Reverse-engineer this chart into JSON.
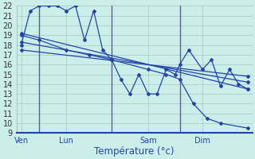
{
  "background_color": "#cceee8",
  "grid_color": "#aacccc",
  "line_color": "#2244aa",
  "ylim": [
    9,
    22
  ],
  "yticks": [
    9,
    10,
    11,
    12,
    13,
    14,
    15,
    16,
    17,
    18,
    19,
    20,
    21,
    22
  ],
  "xlabel": "Température (°c)",
  "xlabel_fontsize": 8.5,
  "tick_fontsize": 7,
  "day_labels": [
    "Ven",
    "Lun",
    "Sam",
    "Dim"
  ],
  "day_positions": [
    0.5,
    5.5,
    14.5,
    20.5
  ],
  "vline_positions": [
    2.5,
    10.5,
    18.0
  ],
  "xlim": [
    0,
    26
  ],
  "num_x_gridlines": 26,
  "series1_x": [
    0.5,
    1.5,
    2.5,
    3.5,
    4.5,
    5.5,
    6.5,
    7.5,
    8.5,
    9.5,
    10.5,
    11.5,
    12.5,
    13.5,
    14.5,
    15.5,
    16.5,
    17.5,
    18.0,
    19.0,
    20.5,
    21.5,
    22.5,
    23.5,
    24.5,
    25.5
  ],
  "series1_y": [
    18,
    21.5,
    22,
    22,
    22,
    21.5,
    22,
    18.5,
    21.5,
    17.5,
    16.5,
    14.5,
    13,
    15,
    13,
    13,
    15.5,
    15,
    16,
    17.5,
    15.5,
    16.5,
    13.8,
    15.5,
    14,
    13.5
  ],
  "series2_x": [
    0.5,
    2.5,
    5.5,
    8.0,
    10.5,
    14.5,
    16.5,
    18.0,
    19.5,
    21.0,
    22.5,
    25.5
  ],
  "series2_y": [
    19,
    18.5,
    17.5,
    17,
    16.5,
    15.5,
    15,
    14.5,
    12,
    10.5,
    10,
    9.5
  ],
  "series3_x": [
    0.5,
    25.5
  ],
  "series3_y": [
    19.2,
    13.5
  ],
  "series4_x": [
    0.5,
    25.5
  ],
  "series4_y": [
    18.3,
    14.2
  ],
  "series5_x": [
    0.5,
    25.5
  ],
  "series5_y": [
    17.5,
    14.8
  ]
}
